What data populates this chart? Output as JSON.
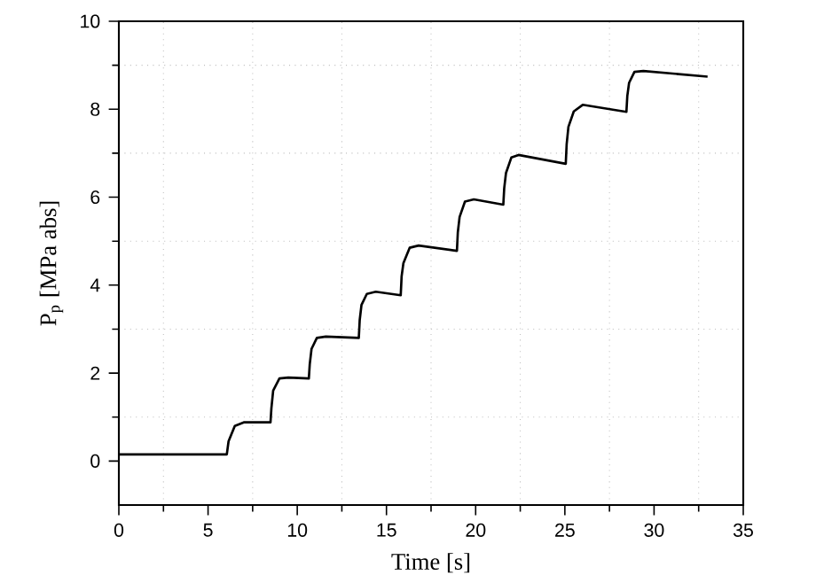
{
  "chart_data": {
    "type": "line",
    "xlabel": "Time [s]",
    "ylabel": "P$_{p}$ [MPa abs]",
    "xlim": [
      0,
      35
    ],
    "ylim": [
      -1,
      10
    ],
    "xticks": [
      0,
      5,
      10,
      15,
      20,
      25,
      30,
      35
    ],
    "yticks": [
      0,
      2,
      4,
      6,
      8,
      10
    ],
    "grid": true,
    "marker": "none",
    "line_style": "solid",
    "series": [
      {
        "color": "#000000",
        "x": [
          0,
          3,
          6.05,
          6.15,
          6.5,
          7.0,
          8.5,
          8.55,
          8.65,
          9.0,
          9.5,
          10.65,
          10.7,
          10.8,
          11.1,
          11.6,
          13.45,
          13.5,
          13.6,
          13.9,
          14.4,
          15.8,
          15.85,
          15.95,
          16.3,
          16.8,
          18.95,
          19.0,
          19.1,
          19.4,
          19.9,
          21.55,
          21.6,
          21.7,
          22.0,
          22.4,
          25.05,
          25.1,
          25.2,
          25.5,
          26.0,
          28.45,
          28.5,
          28.6,
          28.9,
          29.4,
          33.0
        ],
        "values": [
          0.15,
          0.15,
          0.15,
          0.45,
          0.8,
          0.88,
          0.88,
          1.2,
          1.6,
          1.88,
          1.9,
          1.88,
          2.2,
          2.55,
          2.8,
          2.83,
          2.8,
          3.2,
          3.55,
          3.8,
          3.85,
          3.77,
          4.2,
          4.5,
          4.85,
          4.9,
          4.78,
          5.2,
          5.55,
          5.9,
          5.95,
          5.83,
          6.2,
          6.55,
          6.9,
          6.96,
          6.76,
          7.2,
          7.6,
          7.95,
          8.1,
          7.94,
          8.3,
          8.6,
          8.85,
          8.87,
          8.74
        ]
      }
    ]
  }
}
